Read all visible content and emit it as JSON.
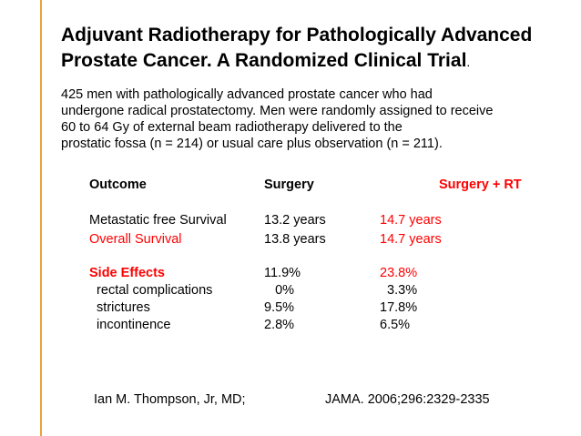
{
  "colors": {
    "accent_bar": "#e8a33c",
    "highlight": "#ff0000",
    "text": "#000000",
    "background": "#ffffff"
  },
  "title": {
    "line1": "Adjuvant Radiotherapy for Pathologically Advanced",
    "line2": "Prostate Cancer.  A Randomized Clinical Trial",
    "line2_suffix": "."
  },
  "intro": {
    "lines": [
      "425 men with pathologically advanced prostate cancer who had",
      "undergone radical prostatectomy.  Men were randomly assigned to receive",
      "60 to 64 Gy of external beam radiotherapy delivered to the",
      "prostatic fossa (n = 214) or usual care plus observation (n = 211)."
    ]
  },
  "table": {
    "headers": {
      "outcome": "Outcome",
      "surgery": "Surgery",
      "surgery_rt": "Surgery + RT"
    },
    "rows": [
      {
        "outcome": "Metastatic free Survival",
        "surgery": "13.2 years",
        "surgery_rt": "14.7 years"
      },
      {
        "outcome": "Overall Survival",
        "surgery": "13.8 years",
        "surgery_rt": "14.7 years"
      },
      {
        "outcome": "Side Effects",
        "surgery": "11.9%",
        "surgery_rt": "23.8%"
      },
      {
        "outcome": "  rectal complications",
        "surgery": "   0%",
        "surgery_rt": "  3.3%"
      },
      {
        "outcome": "  strictures",
        "surgery": "9.5%",
        "surgery_rt": "17.8%"
      },
      {
        "outcome": "  incontinence",
        "surgery": "2.8%",
        "surgery_rt": "6.5%"
      }
    ]
  },
  "footer": {
    "author": "Ian M. Thompson, Jr, MD;",
    "citation": "JAMA. 2006;296:2329-2335"
  }
}
